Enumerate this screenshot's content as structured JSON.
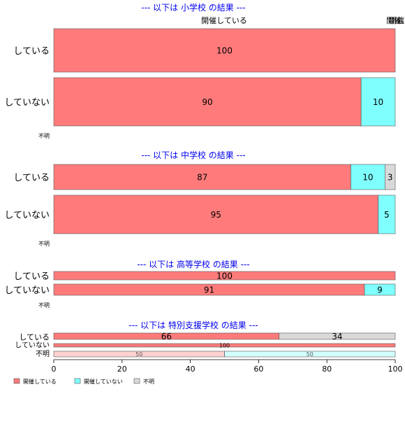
{
  "chart_data": {
    "type": "bar",
    "orientation": "horizontal",
    "stacked": true,
    "xlim": [
      0,
      100
    ],
    "x_ticks": [
      "0",
      "20",
      "40",
      "60",
      "80",
      "100"
    ],
    "series_names": [
      "開催している",
      "開催していない",
      "不明"
    ],
    "colors": [
      "#ff7b7b",
      "#80ffff",
      "#d9d9d9"
    ],
    "legend_position": "bottom-left",
    "top_header": {
      "label1": "開催している",
      "label2": "開催.",
      "label3": "開催."
    },
    "panels": [
      {
        "title": "--- 以下は 小学校 の結果 ---",
        "rows": [
          {
            "label": "している",
            "values": [
              100,
              0,
              0
            ],
            "labels": [
              "100",
              "",
              ""
            ]
          },
          {
            "label": "していない",
            "values": [
              90,
              10,
              0
            ],
            "labels": [
              "90",
              "10",
              ""
            ]
          }
        ],
        "empty_label": "不明"
      },
      {
        "title": "--- 以下は 中学校 の結果 ---",
        "rows": [
          {
            "label": "している",
            "values": [
              87,
              10,
              3
            ],
            "labels": [
              "87",
              "10",
              "3"
            ]
          },
          {
            "label": "していない",
            "values": [
              95,
              5,
              0
            ],
            "labels": [
              "95",
              "5",
              ""
            ]
          }
        ],
        "empty_label": "不明"
      },
      {
        "title": "--- 以下は 高等学校 の結果 ---",
        "rows": [
          {
            "label": "している",
            "values": [
              100,
              0,
              0
            ],
            "labels": [
              "100",
              "",
              ""
            ]
          },
          {
            "label": "していない",
            "values": [
              91,
              9,
              0
            ],
            "labels": [
              "91",
              "9",
              ""
            ]
          }
        ],
        "empty_label": "不明"
      },
      {
        "title": "--- 以下は 特別支援学校 の結果 ---",
        "rows": [
          {
            "label": "している",
            "values": [
              66,
              0,
              34
            ],
            "labels": [
              "66",
              "",
              "34"
            ]
          },
          {
            "label": "していない",
            "values": [
              100,
              0,
              0
            ],
            "labels": [
              "100",
              "",
              ""
            ]
          },
          {
            "label": "不明",
            "values": [
              50,
              50,
              0
            ],
            "labels": [
              "50",
              "50",
              ""
            ],
            "faded": true
          }
        ]
      }
    ],
    "legend": [
      "開催している",
      "開催していない",
      "不明"
    ]
  }
}
